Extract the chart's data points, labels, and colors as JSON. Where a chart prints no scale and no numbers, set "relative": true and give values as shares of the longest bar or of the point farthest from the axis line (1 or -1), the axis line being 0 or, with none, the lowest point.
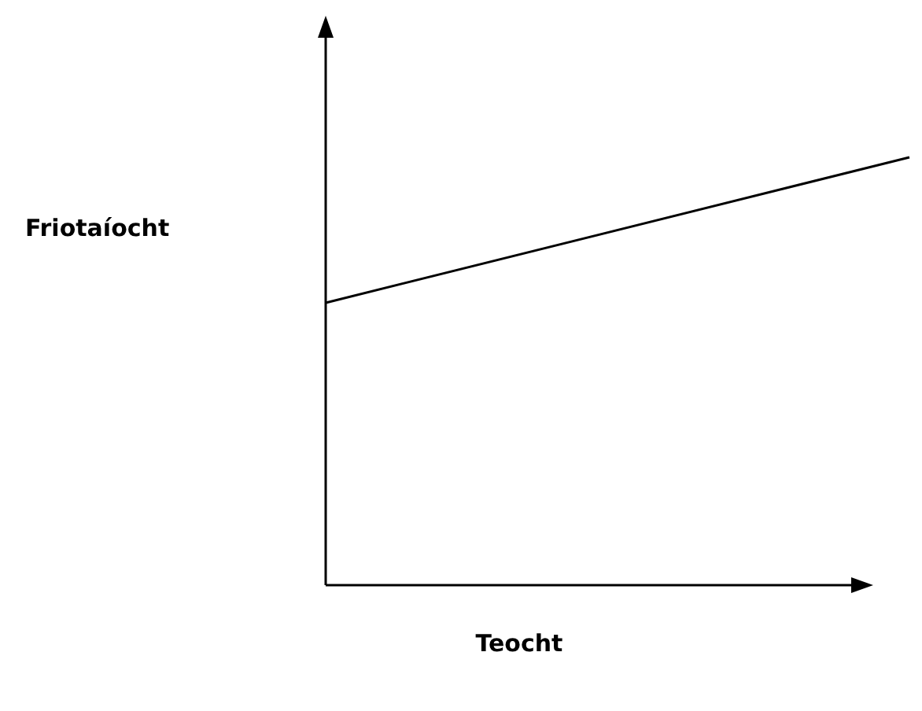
{
  "chart_data": {
    "type": "line",
    "relative": true,
    "xlabel": "Teocht",
    "ylabel": "Friotaíocht",
    "categories": [
      null,
      null
    ],
    "series": [
      {
        "color": "#000000",
        "values": [
          0.66,
          1
        ]
      }
    ],
    "marker": "none",
    "line_style": "solid"
  }
}
